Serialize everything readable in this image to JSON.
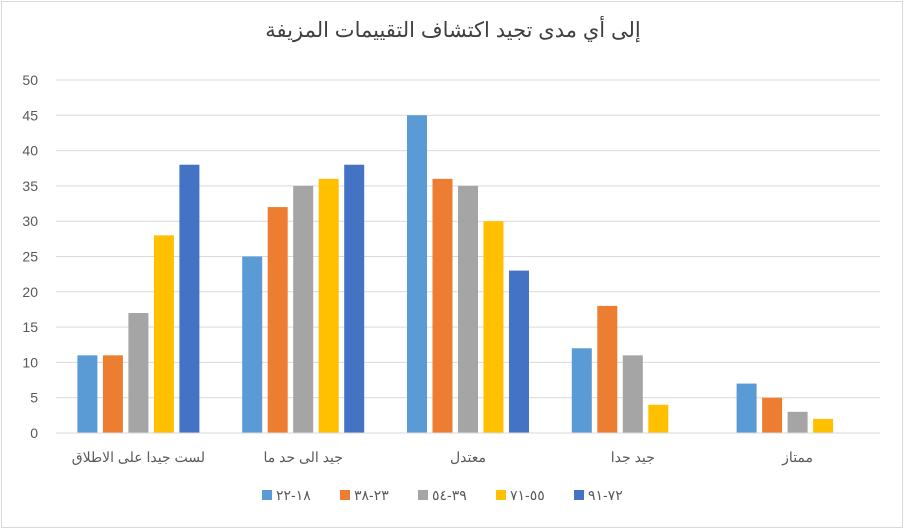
{
  "chart_data": {
    "type": "bar",
    "title": "إلى أي مدى تجيد اكتشاف التقييمات المزيفة",
    "categories": [
      "لست جيدا على الاطلاق",
      "جيد الى حد ما",
      "معتدل",
      "جيد جدا",
      "ممتاز"
    ],
    "series": [
      {
        "name": "١٨-٢٢",
        "color": "#5b9bd5",
        "values": [
          11,
          25,
          45,
          12,
          7
        ]
      },
      {
        "name": "٢٣-٣٨",
        "color": "#ed7d31",
        "values": [
          11,
          32,
          36,
          18,
          5
        ]
      },
      {
        "name": "٣٩-٥٤",
        "color": "#a5a5a5",
        "values": [
          17,
          35,
          35,
          11,
          3
        ]
      },
      {
        "name": "٥٥-٧١",
        "color": "#ffc000",
        "values": [
          28,
          36,
          30,
          4,
          2
        ]
      },
      {
        "name": "٧٢-٩١",
        "color": "#4472c4",
        "values": [
          38,
          38,
          23,
          0,
          0
        ]
      }
    ],
    "ylim": [
      0,
      50
    ],
    "yticks": [
      0,
      5,
      10,
      15,
      20,
      25,
      30,
      35,
      40,
      45,
      50
    ],
    "grid": true,
    "legend_position": "bottom"
  }
}
